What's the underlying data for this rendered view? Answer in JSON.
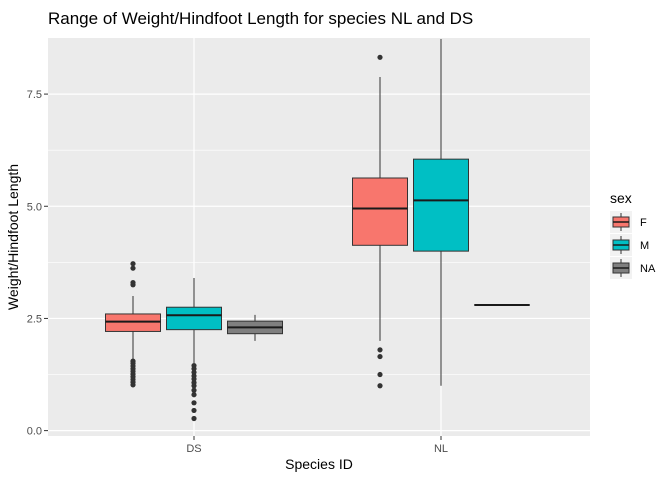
{
  "chart_data": {
    "type": "boxplot",
    "title": "Range of Weight/Hindfoot Length for species NL and DS",
    "xlabel": "Species ID",
    "ylabel": "Weight/Hindfoot Length",
    "categories": [
      "DS",
      "NL"
    ],
    "y_ticks": [
      0.0,
      2.5,
      5.0,
      7.5
    ],
    "y_tick_labels": [
      "0.0",
      "2.5",
      "5.0",
      "7.5"
    ],
    "ylim": [
      -0.12,
      8.75
    ],
    "grid": true,
    "panel_background": "#ebebeb",
    "legend": {
      "title": "sex",
      "position": "right",
      "entries": [
        {
          "label": "F",
          "color": "#f8766d"
        },
        {
          "label": "M",
          "color": "#00bfc4"
        },
        {
          "label": "NA",
          "color": "#7f7f7f"
        }
      ]
    },
    "series": [
      {
        "name": "F",
        "color": "#f8766d",
        "boxes": [
          {
            "category": "DS",
            "min": 1.58,
            "q1": 2.21,
            "median": 2.43,
            "q3": 2.6,
            "max": 3.0,
            "outliers": [
              3.72,
              3.62,
              3.3,
              3.25,
              1.55,
              1.5,
              1.44,
              1.38,
              1.32,
              1.26,
              1.2,
              1.14,
              1.08,
              1.02
            ]
          },
          {
            "category": "NL",
            "min": 2.0,
            "q1": 4.13,
            "median": 4.95,
            "q3": 5.63,
            "max": 7.88,
            "outliers": [
              8.32,
              1.8,
              1.65,
              1.25,
              1.0
            ]
          }
        ]
      },
      {
        "name": "M",
        "color": "#00bfc4",
        "boxes": [
          {
            "category": "DS",
            "min": 1.5,
            "q1": 2.25,
            "median": 2.57,
            "q3": 2.75,
            "max": 3.4,
            "outliers": [
              1.45,
              1.38,
              1.3,
              1.22,
              1.15,
              1.07,
              1.0,
              0.9,
              0.8,
              0.62,
              0.45,
              0.27
            ]
          },
          {
            "category": "NL",
            "min": 1.0,
            "q1": 4.0,
            "median": 5.13,
            "q3": 6.05,
            "max": 8.73,
            "outliers": []
          }
        ]
      },
      {
        "name": "NA",
        "color": "#7f7f7f",
        "boxes": [
          {
            "category": "DS",
            "min": 2.0,
            "q1": 2.16,
            "median": 2.3,
            "q3": 2.44,
            "max": 2.58,
            "outliers": []
          },
          {
            "category": "NL",
            "min": 2.8,
            "q1": 2.8,
            "median": 2.8,
            "q3": 2.8,
            "max": 2.8,
            "outliers": []
          }
        ]
      }
    ]
  }
}
